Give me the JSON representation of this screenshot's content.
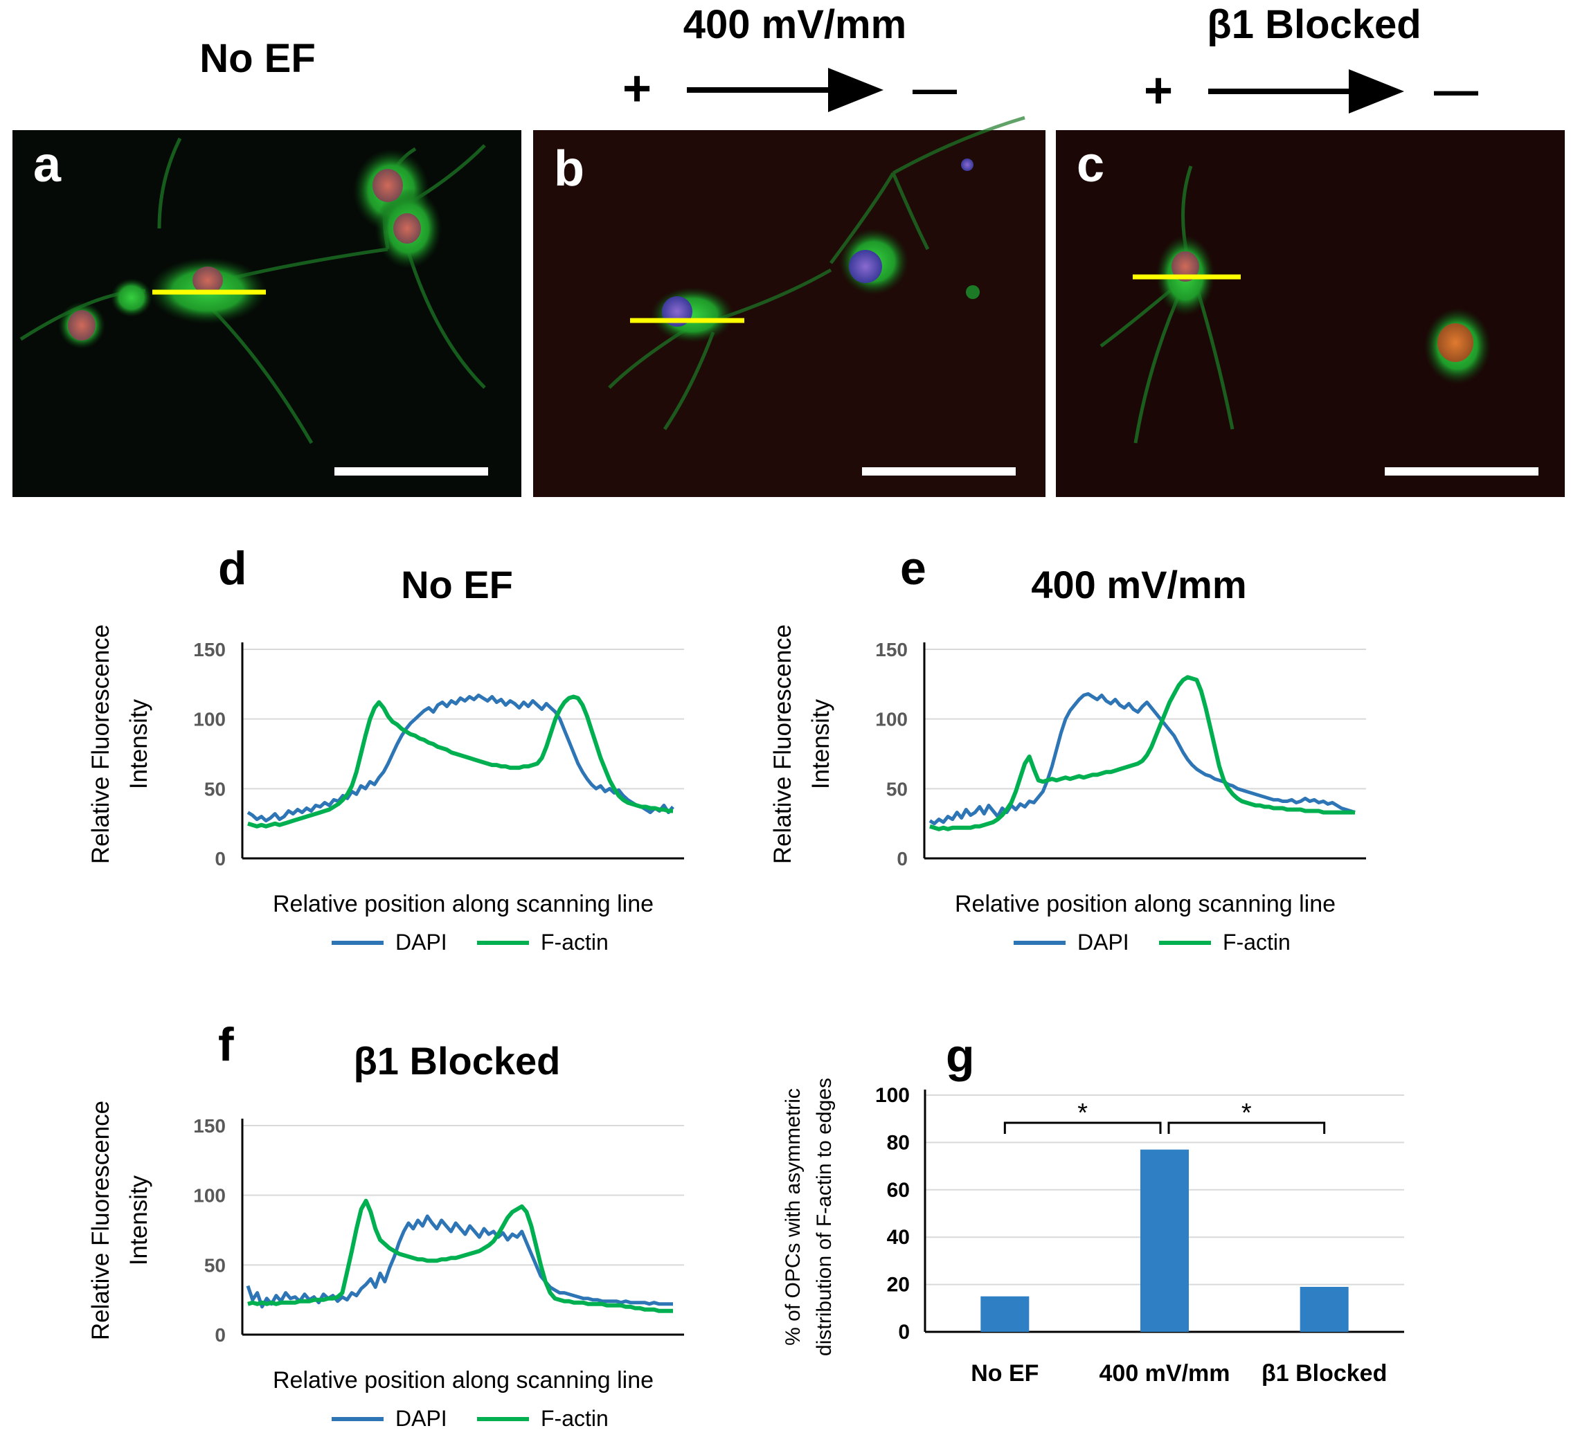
{
  "panel_titles": {
    "a": "No EF",
    "b": "400 mV/mm",
    "c": "β1 Blocked",
    "plus": "+",
    "minus": "—"
  },
  "micrographs": [
    {
      "letter": "a",
      "background": "#060b06"
    },
    {
      "letter": "b",
      "background": "#1f0a07"
    },
    {
      "letter": "c",
      "background": "#1b0806"
    }
  ],
  "colors": {
    "dapi": "#2e75b6",
    "factin": "#00b050",
    "bar": "#2e7fc4",
    "scanline": "#ffff00",
    "gridline": "#d9d9d9"
  },
  "chart_data": [
    {
      "id": "d",
      "type": "line",
      "panel_letter": "d",
      "title": "No EF",
      "xlabel": "Relative position along scanning line",
      "ylabel_line1": "Relative Fluorescence",
      "ylabel_line2": "Intensity",
      "yticks": [
        "0",
        "50",
        "100",
        "150"
      ],
      "ylim": [
        0,
        150
      ],
      "legend": [
        "DAPI",
        "F-actin"
      ],
      "series": [
        {
          "name": "DAPI",
          "values": [
            33,
            31,
            28,
            30,
            27,
            29,
            32,
            28,
            30,
            34,
            32,
            35,
            33,
            36,
            34,
            38,
            37,
            40,
            38,
            42,
            41,
            45,
            43,
            48,
            46,
            52,
            50,
            55,
            53,
            58,
            62,
            68,
            75,
            82,
            88,
            93,
            97,
            100,
            103,
            106,
            108,
            105,
            110,
            112,
            109,
            113,
            111,
            115,
            113,
            116,
            114,
            117,
            115,
            113,
            116,
            112,
            114,
            110,
            113,
            111,
            108,
            112,
            109,
            113,
            110,
            107,
            111,
            108,
            105,
            100,
            92,
            84,
            76,
            68,
            62,
            57,
            53,
            50,
            52,
            48,
            50,
            47,
            49,
            45,
            42,
            40,
            38,
            37,
            35,
            33,
            36,
            34,
            38,
            33,
            37
          ]
        },
        {
          "name": "F-actin",
          "values": [
            25,
            24,
            23,
            24,
            23,
            24,
            25,
            24,
            25,
            26,
            27,
            28,
            29,
            30,
            31,
            32,
            33,
            34,
            35,
            37,
            39,
            42,
            46,
            52,
            62,
            75,
            88,
            100,
            108,
            112,
            108,
            102,
            98,
            96,
            93,
            91,
            89,
            88,
            86,
            85,
            83,
            82,
            80,
            79,
            78,
            76,
            75,
            74,
            73,
            72,
            71,
            70,
            69,
            68,
            67,
            67,
            66,
            66,
            65,
            65,
            65,
            66,
            66,
            67,
            68,
            72,
            80,
            90,
            100,
            107,
            112,
            115,
            116,
            115,
            110,
            102,
            92,
            82,
            72,
            64,
            56,
            50,
            45,
            42,
            40,
            39,
            38,
            37,
            37,
            36,
            36,
            35,
            35,
            34,
            34
          ]
        }
      ]
    },
    {
      "id": "e",
      "type": "line",
      "panel_letter": "e",
      "title": "400 mV/mm",
      "xlabel": "Relative position along scanning line",
      "ylabel_line1": "Relative Fluorescence",
      "ylabel_line2": "Intensity",
      "yticks": [
        "0",
        "50",
        "100",
        "150"
      ],
      "ylim": [
        0,
        150
      ],
      "legend": [
        "DAPI",
        "F-actin"
      ],
      "series": [
        {
          "name": "DAPI",
          "values": [
            27,
            25,
            28,
            26,
            30,
            28,
            33,
            29,
            35,
            31,
            33,
            37,
            32,
            38,
            34,
            30,
            36,
            33,
            38,
            35,
            39,
            37,
            41,
            40,
            44,
            48,
            56,
            66,
            78,
            90,
            100,
            106,
            110,
            114,
            117,
            118,
            116,
            114,
            117,
            113,
            111,
            114,
            110,
            108,
            111,
            107,
            105,
            109,
            112,
            108,
            104,
            100,
            96,
            92,
            88,
            82,
            76,
            71,
            67,
            64,
            62,
            60,
            59,
            57,
            56,
            55,
            53,
            52,
            50,
            49,
            48,
            47,
            46,
            45,
            44,
            43,
            42,
            42,
            41,
            41,
            42,
            40,
            41,
            43,
            41,
            42,
            40,
            41,
            39,
            40,
            38,
            36,
            35,
            34,
            33
          ]
        },
        {
          "name": "F-actin",
          "values": [
            23,
            22,
            21,
            22,
            21,
            22,
            22,
            22,
            22,
            22,
            23,
            23,
            24,
            25,
            26,
            28,
            31,
            35,
            40,
            48,
            58,
            68,
            73,
            64,
            56,
            55,
            56,
            57,
            56,
            57,
            58,
            57,
            58,
            59,
            58,
            59,
            60,
            60,
            61,
            62,
            62,
            63,
            64,
            65,
            66,
            67,
            68,
            70,
            74,
            80,
            88,
            96,
            104,
            112,
            118,
            124,
            128,
            130,
            129,
            128,
            120,
            108,
            94,
            80,
            66,
            56,
            50,
            46,
            43,
            41,
            40,
            39,
            38,
            38,
            37,
            37,
            36,
            36,
            36,
            35,
            35,
            35,
            35,
            34,
            34,
            34,
            34,
            33,
            33,
            33,
            33,
            33,
            33,
            33,
            33
          ]
        }
      ]
    },
    {
      "id": "f",
      "type": "line",
      "panel_letter": "f",
      "title": "β1 Blocked",
      "xlabel": "Relative position along scanning line",
      "ylabel_line1": "Relative Fluorescence",
      "ylabel_line2": "Intensity",
      "yticks": [
        "0",
        "50",
        "100",
        "150"
      ],
      "ylim": [
        0,
        150
      ],
      "legend": [
        "DAPI",
        "F-actin"
      ],
      "series": [
        {
          "name": "DAPI",
          "values": [
            35,
            25,
            30,
            20,
            26,
            22,
            28,
            24,
            30,
            26,
            27,
            24,
            29,
            25,
            27,
            23,
            29,
            26,
            28,
            24,
            27,
            25,
            30,
            28,
            33,
            36,
            40,
            34,
            44,
            38,
            48,
            56,
            66,
            74,
            80,
            76,
            82,
            78,
            85,
            80,
            76,
            82,
            78,
            74,
            80,
            76,
            72,
            78,
            74,
            70,
            76,
            72,
            74,
            70,
            73,
            68,
            72,
            70,
            74,
            66,
            58,
            50,
            42,
            38,
            34,
            32,
            30,
            30,
            29,
            28,
            27,
            26,
            26,
            25,
            25,
            24,
            24,
            24,
            24,
            23,
            24,
            23,
            23,
            23,
            23,
            22,
            23,
            22,
            22,
            22,
            22
          ]
        },
        {
          "name": "F-actin",
          "values": [
            22,
            23,
            22,
            23,
            22,
            23,
            22,
            23,
            23,
            23,
            23,
            24,
            24,
            24,
            25,
            25,
            25,
            26,
            26,
            27,
            30,
            45,
            60,
            76,
            90,
            96,
            88,
            76,
            68,
            65,
            62,
            60,
            58,
            57,
            56,
            55,
            54,
            54,
            53,
            53,
            53,
            54,
            54,
            55,
            55,
            56,
            57,
            58,
            59,
            60,
            62,
            64,
            67,
            72,
            78,
            84,
            88,
            90,
            92,
            88,
            78,
            64,
            50,
            38,
            30,
            26,
            25,
            24,
            24,
            23,
            23,
            23,
            22,
            22,
            22,
            22,
            21,
            21,
            21,
            21,
            20,
            20,
            19,
            19,
            18,
            18,
            18,
            17,
            17,
            17,
            17
          ]
        }
      ]
    },
    {
      "id": "g",
      "type": "bar",
      "panel_letter": "g",
      "title": "",
      "categories": [
        "No EF",
        "400 mV/mm",
        "β1 Blocked"
      ],
      "values": [
        15,
        77,
        19
      ],
      "ylim": [
        0,
        100
      ],
      "yticks": [
        "0",
        "20",
        "40",
        "60",
        "80",
        "100"
      ],
      "ylabel_line1": "% of OPCs with asymmetric",
      "ylabel_line2": "distribution of F-actin to edges",
      "significance": [
        {
          "from": 0,
          "to": 1,
          "label": "*"
        },
        {
          "from": 1,
          "to": 2,
          "label": "*"
        }
      ]
    }
  ]
}
